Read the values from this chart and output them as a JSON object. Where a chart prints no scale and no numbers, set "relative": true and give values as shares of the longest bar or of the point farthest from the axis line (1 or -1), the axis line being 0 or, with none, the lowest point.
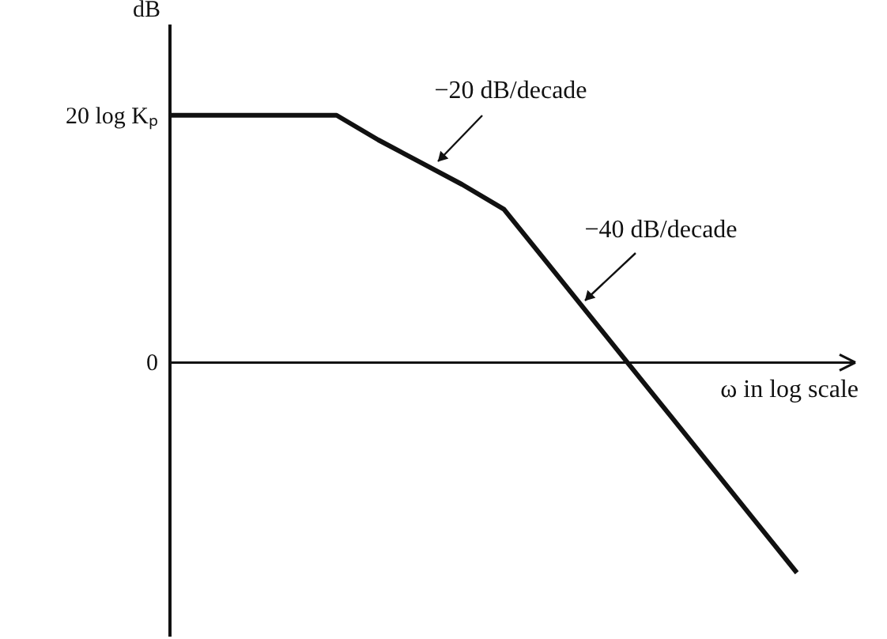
{
  "chart_data": {
    "type": "line",
    "xlabel": "ω in log scale",
    "ylabel": "dB",
    "categories": [
      null,
      null,
      null,
      null,
      null,
      null,
      null,
      null,
      null,
      null,
      null,
      null,
      null,
      null,
      null,
      null
    ],
    "series": [
      {
        "color": "#111111",
        "values": [
          1,
          1,
          1,
          1,
          1,
          0.9,
          0.81,
          0.72,
          0.62,
          0.41,
          0.2,
          -0.01,
          -0.22,
          -0.43,
          -0.64,
          -0.85
        ]
      }
    ],
    "relative": true,
    "annotations": [
      "−20 dB/decade",
      "−40 dB/decade",
      "20 log Kₚ",
      "0"
    ],
    "grid": false,
    "marker": "none",
    "line_style": "solid"
  }
}
